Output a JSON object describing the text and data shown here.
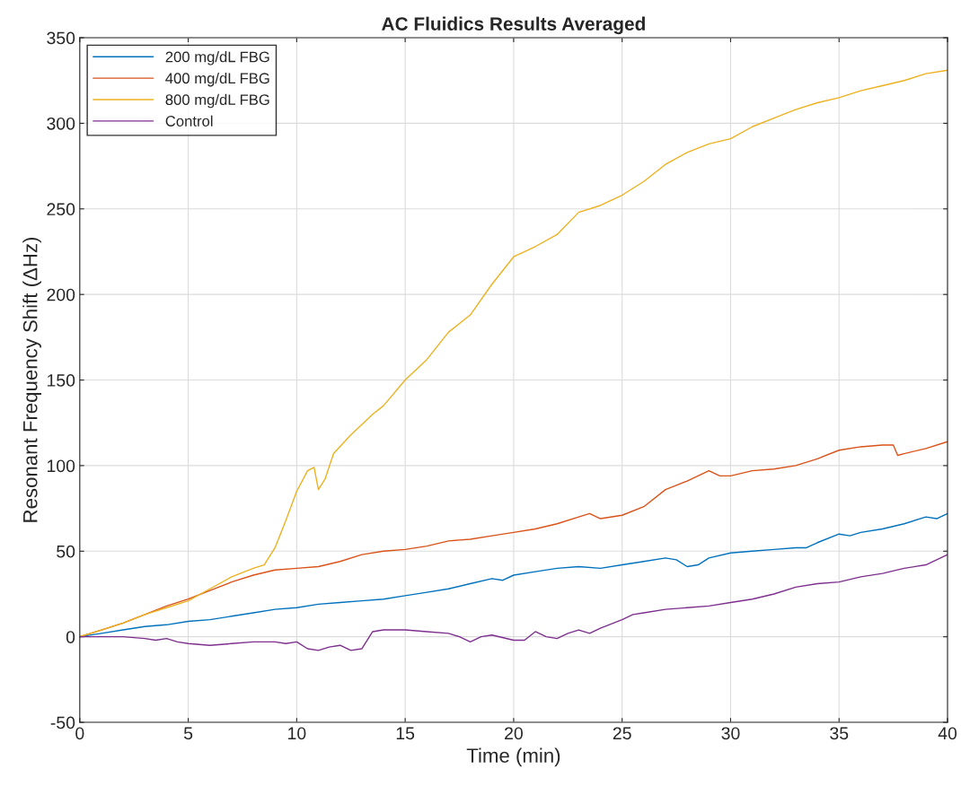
{
  "chart_data": {
    "type": "line",
    "title": "AC Fluidics Results Averaged",
    "xlabel": "Time (min)",
    "ylabel": "Resonant Frequency Shift (ΔHz)",
    "xlim": [
      0,
      40
    ],
    "xticks": [
      0,
      5,
      10,
      15,
      20,
      25,
      30,
      35,
      40
    ],
    "ylim": [
      -50,
      350
    ],
    "yticks": [
      -50,
      0,
      50,
      100,
      150,
      200,
      250,
      300,
      350
    ],
    "grid": true,
    "legend": "top left",
    "marker": "none",
    "line_style": "solid",
    "series": [
      {
        "name": "200 mg/dL FBG",
        "color": "#0072bd",
        "x": [
          0,
          1,
          2,
          3,
          4,
          5,
          6,
          7,
          8,
          9,
          10,
          11,
          12,
          13,
          14,
          15,
          16,
          17,
          18,
          19,
          19.5,
          20,
          21,
          22,
          23,
          24,
          25,
          26,
          27,
          27.5,
          28,
          28.5,
          29,
          30,
          31,
          32,
          33,
          33.5,
          34,
          35,
          35.5,
          36,
          37,
          38,
          39,
          39.5,
          40
        ],
        "values": [
          0,
          2,
          4,
          6,
          7,
          9,
          10,
          12,
          14,
          16,
          17,
          19,
          20,
          21,
          22,
          24,
          26,
          28,
          31,
          34,
          33,
          36,
          38,
          40,
          41,
          40,
          42,
          44,
          46,
          45,
          41,
          42,
          46,
          49,
          50,
          51,
          52,
          52,
          55,
          60,
          59,
          61,
          63,
          66,
          70,
          69,
          72
        ]
      },
      {
        "name": "400 mg/dL FBG",
        "color": "#d95319",
        "x": [
          0,
          1,
          2,
          3,
          4,
          5,
          6,
          7,
          8,
          9,
          10,
          11,
          12,
          13,
          14,
          15,
          16,
          17,
          18,
          19,
          20,
          21,
          22,
          23,
          23.5,
          24,
          25,
          26,
          27,
          28,
          29,
          29.5,
          30,
          31,
          32,
          33,
          34,
          35,
          36,
          37,
          37.5,
          37.7,
          38,
          39,
          40
        ],
        "values": [
          0,
          4,
          8,
          13,
          18,
          22,
          27,
          32,
          36,
          39,
          40,
          41,
          44,
          48,
          50,
          51,
          53,
          56,
          57,
          59,
          61,
          63,
          66,
          70,
          72,
          69,
          71,
          76,
          86,
          91,
          97,
          94,
          94,
          97,
          98,
          100,
          104,
          109,
          111,
          112,
          112,
          106,
          107,
          110,
          114
        ]
      },
      {
        "name": "800 mg/dL FBG",
        "color": "#edb120",
        "x": [
          0,
          1,
          2,
          3,
          4,
          5,
          6,
          7,
          8,
          8.5,
          9,
          9.5,
          10,
          10.5,
          10.8,
          11,
          11.3,
          11.7,
          12.5,
          13,
          13.5,
          14,
          15,
          16,
          17,
          18,
          19,
          20,
          21,
          22,
          23,
          24,
          25,
          26,
          27,
          28,
          29,
          30,
          31,
          32,
          33,
          34,
          35,
          36,
          37,
          38,
          39,
          40
        ],
        "values": [
          0,
          4,
          8,
          13,
          17,
          21,
          28,
          35,
          40,
          42,
          52,
          68,
          85,
          97,
          99,
          86,
          92,
          107,
          118,
          124,
          130,
          135,
          150,
          162,
          178,
          188,
          206,
          222,
          228,
          235,
          248,
          252,
          258,
          266,
          276,
          283,
          288,
          291,
          298,
          303,
          308,
          312,
          315,
          319,
          322,
          325,
          329,
          331
        ]
      },
      {
        "name": "Control",
        "color": "#7e2f8e",
        "x": [
          0,
          1,
          2,
          3,
          3.5,
          4,
          4.5,
          5,
          6,
          7,
          8,
          9,
          9.5,
          10,
          10.5,
          11,
          11.5,
          12,
          12.5,
          13,
          13.5,
          14,
          15,
          16,
          17,
          17.5,
          18,
          18.5,
          19,
          20,
          20.5,
          21,
          21.5,
          22,
          22.5,
          23,
          23.5,
          24,
          25,
          25.5,
          26,
          27,
          28,
          29,
          30,
          31,
          32,
          33,
          34,
          35,
          36,
          37,
          38,
          39,
          40
        ],
        "values": [
          0,
          0,
          0,
          -1,
          -2,
          -1,
          -3,
          -4,
          -5,
          -4,
          -3,
          -3,
          -4,
          -3,
          -7,
          -8,
          -6,
          -5,
          -8,
          -7,
          3,
          4,
          4,
          3,
          2,
          0,
          -3,
          0,
          1,
          -2,
          -2,
          3,
          0,
          -1,
          2,
          4,
          2,
          5,
          10,
          13,
          14,
          16,
          17,
          18,
          20,
          22,
          25,
          29,
          31,
          32,
          35,
          37,
          40,
          42,
          48
        ]
      }
    ]
  }
}
